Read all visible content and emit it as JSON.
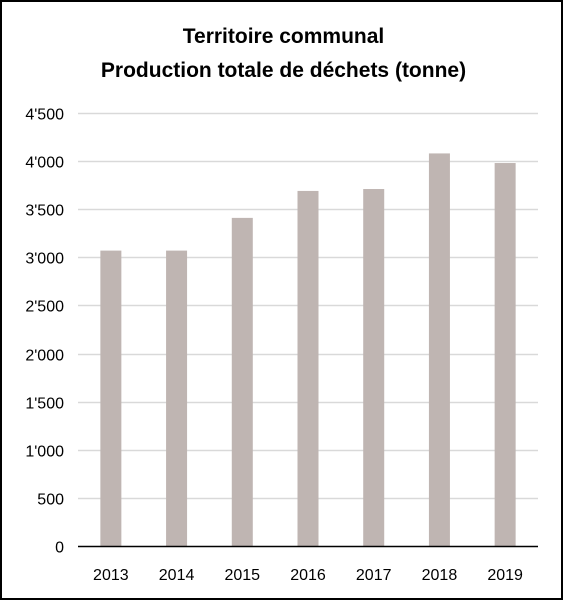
{
  "chart_data": {
    "type": "bar",
    "title": [
      "Territoire communal",
      "Production totale de déchets (tonne)"
    ],
    "xlabel": "",
    "ylabel": "",
    "categories": [
      "2013",
      "2014",
      "2015",
      "2016",
      "2017",
      "2018",
      "2019"
    ],
    "values": [
      3070,
      3070,
      3410,
      3690,
      3710,
      4080,
      3980
    ],
    "ylim": [
      0,
      4500
    ],
    "yticks": [
      0,
      500,
      1000,
      1500,
      2000,
      2500,
      3000,
      3500,
      4000,
      4500
    ],
    "ytick_labels": [
      "0",
      "500",
      "1'000",
      "1'500",
      "2'000",
      "2'500",
      "3'000",
      "3'500",
      "4'000",
      "4'500"
    ],
    "grid": true,
    "legend": "none",
    "bar_color": "#BFB5B2",
    "grid_color": "#D9D9D9",
    "axis_color": "#000000"
  }
}
